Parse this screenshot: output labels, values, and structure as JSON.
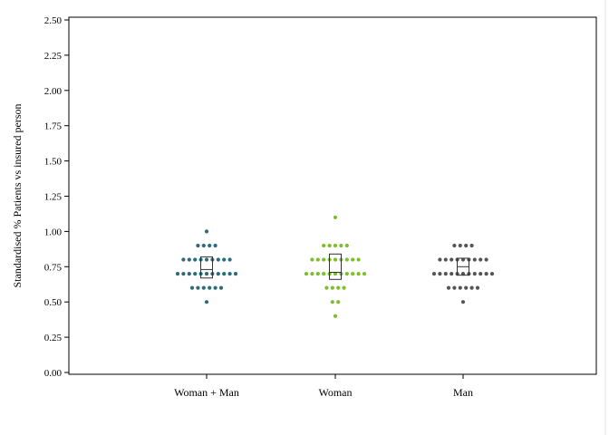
{
  "chart_data": {
    "type": "scatter",
    "subtype": "dot-strip-with-box",
    "title": "",
    "xlabel": "",
    "ylabel": "Standardised % Patients vs insured person",
    "ylim": [
      0,
      2.5
    ],
    "yticks": [
      "0.00",
      "0.25",
      "0.50",
      "0.75",
      "1.00",
      "1.25",
      "1.50",
      "1.75",
      "2.00",
      "2.25",
      "2.50"
    ],
    "grid": false,
    "legend": "none",
    "categories": [
      "Woman + Man",
      "Woman",
      "Man"
    ],
    "series": [
      {
        "category": "Woman + Man",
        "color": "#2e6b78",
        "values": [
          0.5,
          0.6,
          0.6,
          0.6,
          0.6,
          0.6,
          0.6,
          0.7,
          0.7,
          0.7,
          0.7,
          0.7,
          0.7,
          0.7,
          0.7,
          0.7,
          0.7,
          0.7,
          0.8,
          0.8,
          0.8,
          0.8,
          0.8,
          0.8,
          0.8,
          0.8,
          0.8,
          0.9,
          0.9,
          0.9,
          0.9,
          1.0
        ],
        "box": {
          "q1": 0.67,
          "median": 0.73,
          "q3": 0.82
        }
      },
      {
        "category": "Woman",
        "color": "#7dbe2b",
        "values": [
          0.4,
          0.5,
          0.5,
          0.6,
          0.6,
          0.6,
          0.6,
          0.7,
          0.7,
          0.7,
          0.7,
          0.7,
          0.7,
          0.7,
          0.7,
          0.7,
          0.7,
          0.7,
          0.8,
          0.8,
          0.8,
          0.8,
          0.8,
          0.8,
          0.8,
          0.8,
          0.8,
          0.9,
          0.9,
          0.9,
          0.9,
          0.9,
          1.1
        ],
        "box": {
          "q1": 0.66,
          "median": 0.71,
          "q3": 0.84
        }
      },
      {
        "category": "Man",
        "color": "#555555",
        "values": [
          0.5,
          0.6,
          0.6,
          0.6,
          0.6,
          0.6,
          0.6,
          0.7,
          0.7,
          0.7,
          0.7,
          0.7,
          0.7,
          0.7,
          0.7,
          0.7,
          0.7,
          0.7,
          0.8,
          0.8,
          0.8,
          0.8,
          0.8,
          0.8,
          0.8,
          0.8,
          0.8,
          0.9,
          0.9,
          0.9,
          0.9
        ],
        "box": {
          "q1": 0.69,
          "median": 0.75,
          "q3": 0.81
        }
      }
    ]
  }
}
